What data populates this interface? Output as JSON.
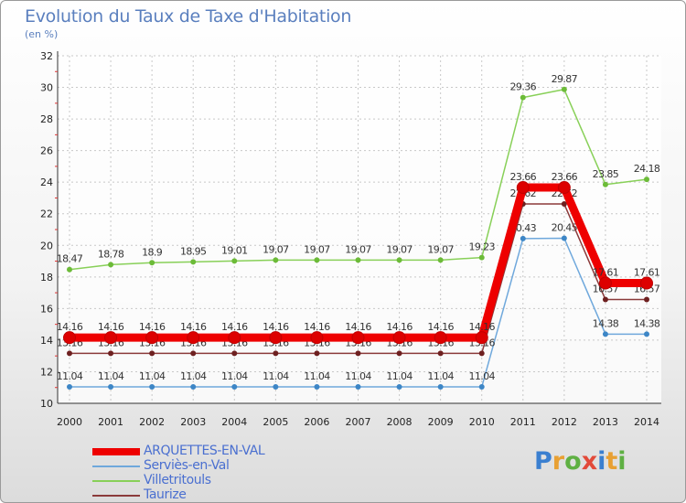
{
  "title": "Evolution du Taux de Taxe d'Habitation",
  "unit_label": "(en %)",
  "logo": {
    "text": "Proxiti",
    "colors": [
      "#3a7fd0",
      "#e8a033",
      "#5fb043",
      "#e24a3a",
      "#3a7fd0",
      "#e8a033",
      "#5fb043"
    ]
  },
  "chart_data": {
    "type": "line",
    "title": "Evolution du Taux de Taxe d'Habitation",
    "ylabel": "(en %)",
    "xlabel": "",
    "ylim": [
      10,
      32
    ],
    "yticks": [
      "10",
      "12",
      "14",
      "16",
      "18",
      "20",
      "22",
      "24",
      "26",
      "28",
      "30",
      "32"
    ],
    "categories": [
      "2000",
      "2001",
      "2002",
      "2003",
      "2004",
      "2005",
      "2006",
      "2007",
      "2008",
      "2009",
      "2010",
      "2011",
      "2012",
      "2013",
      "2014"
    ],
    "grid": true,
    "legend_position": "bottom-left",
    "series": [
      {
        "name": "Villetritouls",
        "color": "#88d058",
        "marker": "#6cbb38",
        "values": [
          18.47,
          18.78,
          18.9,
          18.95,
          19.01,
          19.07,
          19.07,
          19.07,
          19.07,
          19.07,
          19.23,
          29.36,
          29.87,
          23.85,
          24.18
        ],
        "labels": [
          "18.47",
          "18.78",
          "18.9",
          "18.95",
          "19.01",
          "19.07",
          "19.07",
          "19.07",
          "19.07",
          "19.07",
          "19.23",
          "29.36",
          "29.87",
          "23.85",
          "24.18"
        ]
      },
      {
        "name": "Serviès-en-Val",
        "color": "#6fa8dc",
        "marker": "#3d86c6",
        "values": [
          11.04,
          11.04,
          11.04,
          11.04,
          11.04,
          11.04,
          11.04,
          11.04,
          11.04,
          11.04,
          11.04,
          20.43,
          20.45,
          14.38,
          14.38
        ],
        "labels": [
          "11.04",
          "11.04",
          "11.04",
          "11.04",
          "11.04",
          "11.04",
          "11.04",
          "11.04",
          "11.04",
          "11.04",
          "11.04",
          "20.43",
          "20.45",
          "14.38",
          "14.38"
        ]
      },
      {
        "name": "Taurize",
        "color": "#8b3a3a",
        "marker": "#6e2020",
        "values": [
          13.16,
          13.16,
          13.16,
          13.16,
          13.16,
          13.16,
          13.16,
          13.16,
          13.16,
          13.16,
          13.16,
          22.62,
          22.62,
          16.57,
          16.57
        ],
        "labels": [
          "13.16",
          "13.16",
          "13.16",
          "13.16",
          "13.16",
          "13.16",
          "13.16",
          "13.16",
          "13.16",
          "13.16",
          "13.16",
          "22.62",
          "22.62",
          "16.57",
          "16.57"
        ]
      },
      {
        "name": "ARQUETTES-EN-VAL",
        "color": "#ee0000",
        "marker": "#dd0000",
        "values": [
          14.16,
          14.16,
          14.16,
          14.16,
          14.16,
          14.16,
          14.16,
          14.16,
          14.16,
          14.16,
          14.16,
          23.66,
          23.66,
          17.61,
          17.61
        ],
        "labels": [
          "14.16",
          "14.16",
          "14.16",
          "14.16",
          "14.16",
          "14.16",
          "14.16",
          "14.16",
          "14.16",
          "14.16",
          "14.16",
          "23.66",
          "23.66",
          "17.61",
          "17.61"
        ]
      }
    ]
  },
  "legend": [
    {
      "name": "ARQUETTES-EN-VAL",
      "color": "#ee0000"
    },
    {
      "name": "Serviès-en-Val",
      "color": "#6fa8dc"
    },
    {
      "name": "Villetritouls",
      "color": "#88d058"
    },
    {
      "name": "Taurize",
      "color": "#8b3a3a"
    }
  ]
}
